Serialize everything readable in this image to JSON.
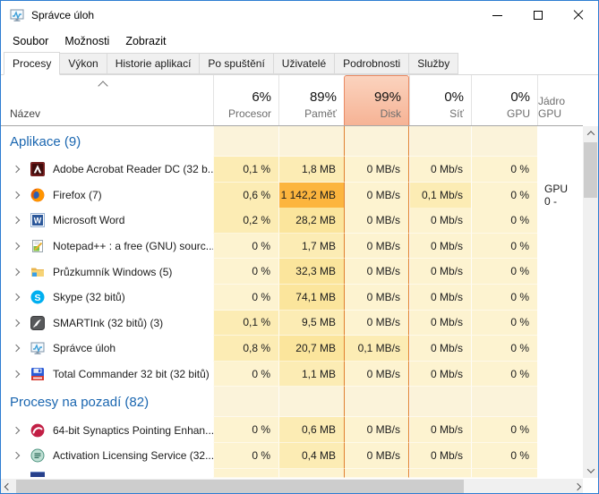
{
  "window": {
    "title": "Správce úloh",
    "controls": [
      {
        "name": "minimize",
        "label": "minimize"
      },
      {
        "name": "maximize",
        "label": "maximize"
      },
      {
        "name": "close",
        "label": "close"
      }
    ]
  },
  "menu": {
    "items": [
      "Soubor",
      "Možnosti",
      "Zobrazit"
    ]
  },
  "tabs": {
    "active_index": 0,
    "items": [
      "Procesy",
      "Výkon",
      "Historie aplikací",
      "Po spuštění",
      "Uživatelé",
      "Podrobnosti",
      "Služby"
    ]
  },
  "process_table": {
    "name_column_label": "Název",
    "sort_indicator": "ascending",
    "value_columns": [
      {
        "id": "cpu",
        "percent": "6%",
        "label": "Procesor",
        "selected": false
      },
      {
        "id": "mem",
        "percent": "89%",
        "label": "Paměť",
        "selected": false
      },
      {
        "id": "disk",
        "percent": "99%",
        "label": "Disk",
        "selected": true
      },
      {
        "id": "net",
        "percent": "0%",
        "label": "Síť",
        "selected": false
      },
      {
        "id": "gpu",
        "percent": "0%",
        "label": "GPU",
        "selected": false
      },
      {
        "id": "gpucore",
        "percent": "",
        "label": "Jádro GPU",
        "selected": false
      }
    ],
    "groups": [
      {
        "label": "Aplikace (9)",
        "rows": [
          {
            "name": "Adobe Acrobat Reader DC (32 b...",
            "icon": "adobe-reader-icon",
            "cells": [
              {
                "v": "0,1 %",
                "heat": "h1"
              },
              {
                "v": "1,8 MB",
                "heat": "h1"
              },
              {
                "v": "0 MB/s",
                "heat": "h0"
              },
              {
                "v": "0 Mb/s",
                "heat": "h0"
              },
              {
                "v": "0 %",
                "heat": "h0"
              },
              {
                "v": "",
                "heat": "none"
              }
            ]
          },
          {
            "name": "Firefox (7)",
            "icon": "firefox-icon",
            "cells": [
              {
                "v": "0,6 %",
                "heat": "h1"
              },
              {
                "v": "1 142,2 MB",
                "heat": "h4"
              },
              {
                "v": "0 MB/s",
                "heat": "h0"
              },
              {
                "v": "0,1 Mb/s",
                "heat": "h1"
              },
              {
                "v": "0 %",
                "heat": "h0"
              },
              {
                "v": "GPU 0 -",
                "heat": "none"
              }
            ]
          },
          {
            "name": "Microsoft Word",
            "icon": "word-icon",
            "cells": [
              {
                "v": "0,2 %",
                "heat": "h1"
              },
              {
                "v": "28,2 MB",
                "heat": "h2"
              },
              {
                "v": "0 MB/s",
                "heat": "h0"
              },
              {
                "v": "0 Mb/s",
                "heat": "h0"
              },
              {
                "v": "0 %",
                "heat": "h0"
              },
              {
                "v": "",
                "heat": "none"
              }
            ]
          },
          {
            "name": "Notepad++ : a free (GNU) sourc...",
            "icon": "notepad-plus-plus-icon",
            "cells": [
              {
                "v": "0 %",
                "heat": "h0"
              },
              {
                "v": "1,7 MB",
                "heat": "h1"
              },
              {
                "v": "0 MB/s",
                "heat": "h0"
              },
              {
                "v": "0 Mb/s",
                "heat": "h0"
              },
              {
                "v": "0 %",
                "heat": "h0"
              },
              {
                "v": "",
                "heat": "none"
              }
            ]
          },
          {
            "name": "Průzkumník Windows (5)",
            "icon": "explorer-folder-icon",
            "cells": [
              {
                "v": "0 %",
                "heat": "h0"
              },
              {
                "v": "32,3 MB",
                "heat": "h2"
              },
              {
                "v": "0 MB/s",
                "heat": "h0"
              },
              {
                "v": "0 Mb/s",
                "heat": "h0"
              },
              {
                "v": "0 %",
                "heat": "h0"
              },
              {
                "v": "",
                "heat": "none"
              }
            ]
          },
          {
            "name": "Skype (32 bitů)",
            "icon": "skype-icon",
            "cells": [
              {
                "v": "0 %",
                "heat": "h0"
              },
              {
                "v": "74,1 MB",
                "heat": "h2"
              },
              {
                "v": "0 MB/s",
                "heat": "h0"
              },
              {
                "v": "0 Mb/s",
                "heat": "h0"
              },
              {
                "v": "0 %",
                "heat": "h0"
              },
              {
                "v": "",
                "heat": "none"
              }
            ]
          },
          {
            "name": "SMARTInk (32 bitů) (3)",
            "icon": "smartink-icon",
            "cells": [
              {
                "v": "0,1 %",
                "heat": "h1"
              },
              {
                "v": "9,5 MB",
                "heat": "h1"
              },
              {
                "v": "0 MB/s",
                "heat": "h0"
              },
              {
                "v": "0 Mb/s",
                "heat": "h0"
              },
              {
                "v": "0 %",
                "heat": "h0"
              },
              {
                "v": "",
                "heat": "none"
              }
            ]
          },
          {
            "name": "Správce úloh",
            "icon": "task-manager-icon",
            "cells": [
              {
                "v": "0,8 %",
                "heat": "h1"
              },
              {
                "v": "20,7 MB",
                "heat": "h2"
              },
              {
                "v": "0,1 MB/s",
                "heat": "h1"
              },
              {
                "v": "0 Mb/s",
                "heat": "h0"
              },
              {
                "v": "0 %",
                "heat": "h0"
              },
              {
                "v": "",
                "heat": "none"
              }
            ]
          },
          {
            "name": "Total Commander 32 bit (32 bitů)",
            "icon": "total-commander-icon",
            "cells": [
              {
                "v": "0 %",
                "heat": "h0"
              },
              {
                "v": "1,1 MB",
                "heat": "h1"
              },
              {
                "v": "0 MB/s",
                "heat": "h0"
              },
              {
                "v": "0 Mb/s",
                "heat": "h0"
              },
              {
                "v": "0 %",
                "heat": "h0"
              },
              {
                "v": "",
                "heat": "none"
              }
            ]
          }
        ]
      },
      {
        "label": "Procesy na pozadí (82)",
        "rows": [
          {
            "name": "64-bit Synaptics Pointing Enhan...",
            "icon": "synaptics-icon",
            "cells": [
              {
                "v": "0 %",
                "heat": "h0"
              },
              {
                "v": "0,6 MB",
                "heat": "h1"
              },
              {
                "v": "0 MB/s",
                "heat": "h0"
              },
              {
                "v": "0 Mb/s",
                "heat": "h0"
              },
              {
                "v": "0 %",
                "heat": "h0"
              },
              {
                "v": "",
                "heat": "none"
              }
            ]
          },
          {
            "name": "Activation Licensing Service (32...",
            "icon": "activation-licensing-icon",
            "cells": [
              {
                "v": "0 %",
                "heat": "h0"
              },
              {
                "v": "0,4 MB",
                "heat": "h1"
              },
              {
                "v": "0 MB/s",
                "heat": "h0"
              },
              {
                "v": "0 Mb/s",
                "heat": "h0"
              },
              {
                "v": "0 %",
                "heat": "h0"
              },
              {
                "v": "",
                "heat": "none"
              }
            ]
          }
        ]
      }
    ]
  },
  "colors": {
    "accent_border": "#2d7dd2",
    "group_text": "#1a66b0",
    "disk_column_border": "#e08030",
    "selected_header_border": "#e98a63",
    "heat": {
      "group": "#fbf3da",
      "h0": "#fdf3d0",
      "h1": "#fcecb4",
      "h2": "#fbe59c",
      "h4": "#fcb53e",
      "none": "transparent"
    }
  }
}
